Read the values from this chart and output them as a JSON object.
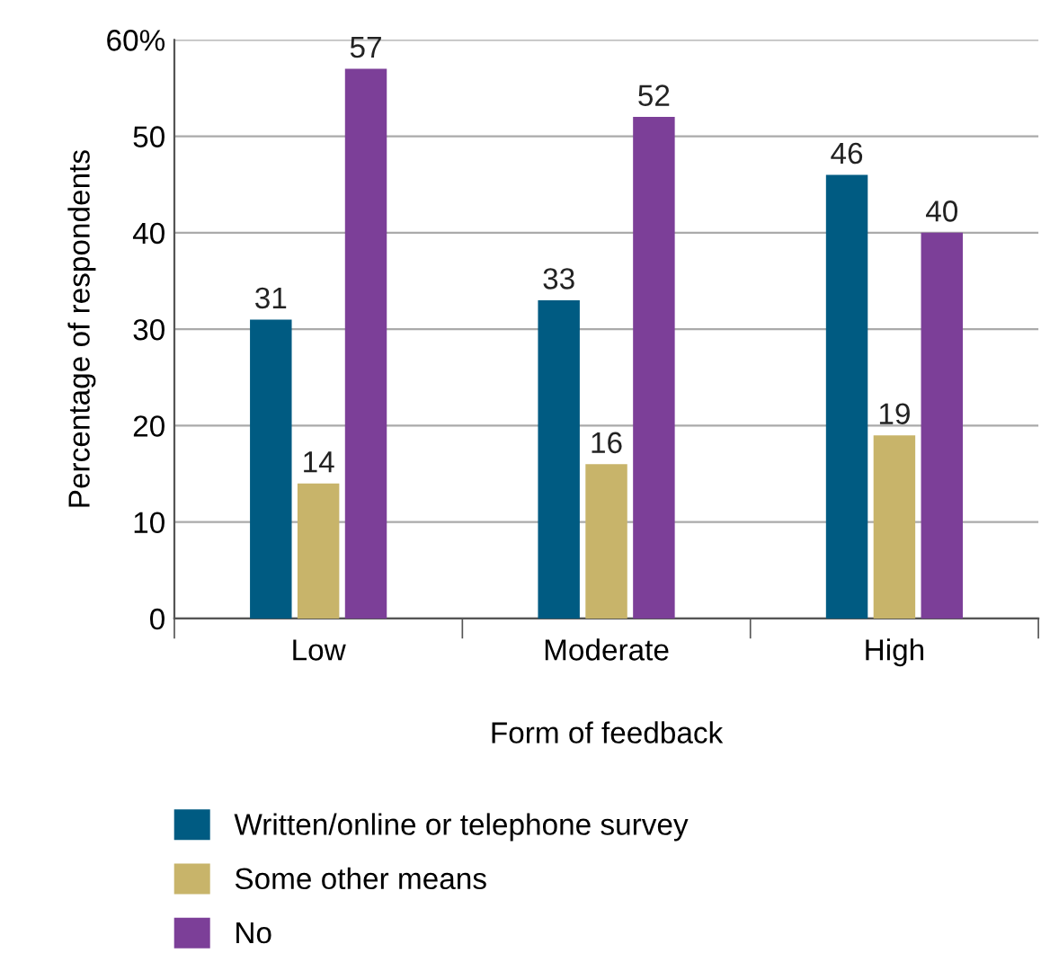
{
  "chart_data": {
    "type": "bar",
    "xlabel": "Form of feedback",
    "ylabel": "Percentage of respondents",
    "categories": [
      "Low",
      "Moderate",
      "High"
    ],
    "series": [
      {
        "name": "Written/online or telephone survey",
        "color": "#005b82",
        "values": [
          31,
          33,
          46
        ]
      },
      {
        "name": "Some other means",
        "color": "#c8b46a",
        "values": [
          14,
          16,
          19
        ]
      },
      {
        "name": "No",
        "color": "#7c3f98",
        "values": [
          57,
          52,
          40
        ]
      }
    ],
    "ylim": [
      0,
      60
    ],
    "yticks": [
      0,
      10,
      20,
      30,
      40,
      50,
      {
        "value": 60,
        "label": "60%"
      }
    ],
    "grid": "y",
    "legend": "bottom",
    "data_labels": true
  }
}
